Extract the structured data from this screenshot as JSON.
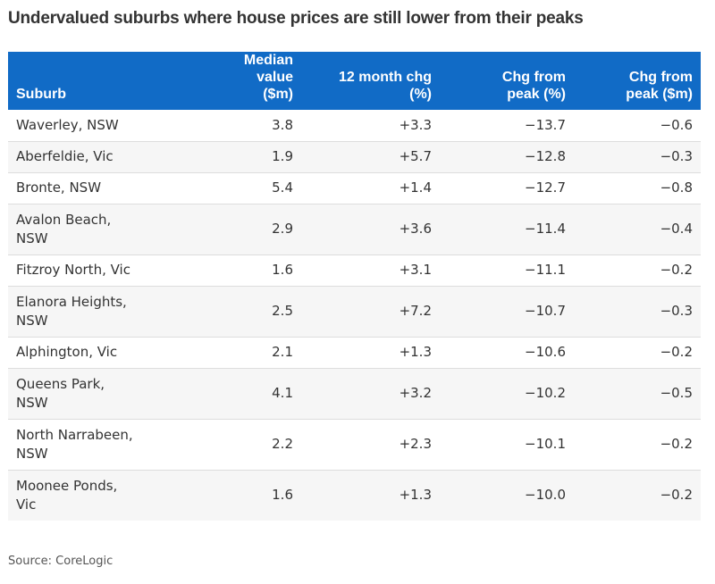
{
  "chart_data": {
    "type": "table",
    "title": "Undervalued suburbs where house prices are still lower from their peaks",
    "columns": [
      "Suburb",
      "Median value ($m)",
      "12 month chg (%)",
      "Chg from peak (%)",
      "Chg from peak ($m)"
    ],
    "header_lines": [
      [
        "",
        "Suburb"
      ],
      [
        "Median value",
        "($m)"
      ],
      [
        "12 month chg",
        "(%)"
      ],
      [
        "Chg from",
        "peak (%)"
      ],
      [
        "Chg from",
        "peak ($m)"
      ]
    ],
    "rows": [
      {
        "suburb_lines": [
          "Waverley, NSW"
        ],
        "suburb": "Waverley, NSW",
        "median": "3.8",
        "chg12": "+3.3",
        "peak_pct": "−13.7",
        "peak_m": "−0.6"
      },
      {
        "suburb_lines": [
          "Aberfeldie, Vic"
        ],
        "suburb": "Aberfeldie, Vic",
        "median": "1.9",
        "chg12": "+5.7",
        "peak_pct": "−12.8",
        "peak_m": "−0.3"
      },
      {
        "suburb_lines": [
          "Bronte, NSW"
        ],
        "suburb": "Bronte, NSW",
        "median": "5.4",
        "chg12": "+1.4",
        "peak_pct": "−12.7",
        "peak_m": "−0.8"
      },
      {
        "suburb_lines": [
          "Avalon Beach,",
          "NSW"
        ],
        "suburb": "Avalon Beach, NSW",
        "median": "2.9",
        "chg12": "+3.6",
        "peak_pct": "−11.4",
        "peak_m": "−0.4"
      },
      {
        "suburb_lines": [
          "Fitzroy North, Vic"
        ],
        "suburb": "Fitzroy North, Vic",
        "median": "1.6",
        "chg12": "+3.1",
        "peak_pct": "−11.1",
        "peak_m": "−0.2"
      },
      {
        "suburb_lines": [
          "Elanora Heights,",
          "NSW"
        ],
        "suburb": "Elanora Heights, NSW",
        "median": "2.5",
        "chg12": "+7.2",
        "peak_pct": "−10.7",
        "peak_m": "−0.3"
      },
      {
        "suburb_lines": [
          "Alphington, Vic"
        ],
        "suburb": "Alphington, Vic",
        "median": "2.1",
        "chg12": "+1.3",
        "peak_pct": "−10.6",
        "peak_m": "−0.2"
      },
      {
        "suburb_lines": [
          "Queens Park,",
          "NSW"
        ],
        "suburb": "Queens Park, NSW",
        "median": "4.1",
        "chg12": "+3.2",
        "peak_pct": "−10.2",
        "peak_m": "−0.5"
      },
      {
        "suburb_lines": [
          "North Narrabeen,",
          "NSW"
        ],
        "suburb": "North Narrabeen, NSW",
        "median": "2.2",
        "chg12": "+2.3",
        "peak_pct": "−10.1",
        "peak_m": "−0.2"
      },
      {
        "suburb_lines": [
          "Moonee Ponds,",
          "Vic"
        ],
        "suburb": "Moonee Ponds, Vic",
        "median": "1.6",
        "chg12": "+1.3",
        "peak_pct": "−10.0",
        "peak_m": "−0.2"
      }
    ],
    "source": "Source: CoreLogic",
    "colors": {
      "header_bg": "#116bc6",
      "header_text": "#ffffff",
      "row_alt": "#f6f6f6",
      "text": "#333333"
    }
  }
}
